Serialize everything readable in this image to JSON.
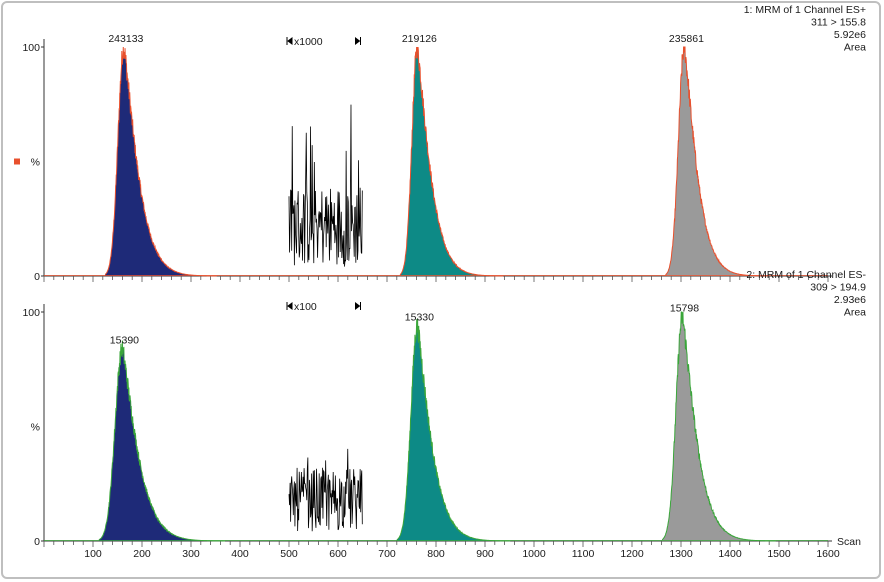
{
  "chart_data": {
    "type": "area",
    "x_label": "Scan",
    "x_range": [
      0,
      1600
    ],
    "x_ticks": [
      100,
      200,
      300,
      400,
      500,
      600,
      700,
      800,
      900,
      1000,
      1100,
      1200,
      1300,
      1400,
      1500,
      1600
    ],
    "y_unit_label": "%",
    "colors": {
      "peak1": "#1e2a78",
      "peak2": "#0d8a86",
      "peak3": "#9a9a9a",
      "trace1": "#e8502d",
      "trace2": "#3aa63a",
      "noise": "#000000"
    },
    "panels": [
      {
        "id": 1,
        "header": [
          "1: MRM of 1 Channel ES+",
          "311 > 155.8",
          "5.92e6",
          "Area"
        ],
        "header_color": "#e8502d",
        "y_ticks": [
          "0",
          "100"
        ],
        "y_mid_label": "%",
        "marker_color": "#e8502d",
        "magnify_label": "x1000",
        "magnify_range": [
          500,
          650
        ],
        "peaks": [
          {
            "label": "243133",
            "apex": 163,
            "height": 100,
            "rise": 12,
            "tail": 38,
            "fill": "peak1"
          },
          {
            "label": "219126",
            "apex": 762,
            "height": 100,
            "rise": 11,
            "tail": 35,
            "fill": "peak2"
          },
          {
            "label": "235861",
            "apex": 1307,
            "height": 100,
            "rise": 12,
            "tail": 34,
            "fill": "peak3"
          }
        ]
      },
      {
        "id": 2,
        "header": [
          "2: MRM of 1 Channel ES-",
          "309 > 194.9",
          "2.93e6",
          "Area"
        ],
        "header_color": "#3aa63a",
        "y_ticks": [
          "0",
          "100"
        ],
        "y_mid_label": "%",
        "magnify_label": "x100",
        "magnify_range": [
          500,
          650
        ],
        "peaks": [
          {
            "label": "15390",
            "apex": 160,
            "height": 84,
            "rise": 15,
            "tail": 42,
            "fill": "peak1"
          },
          {
            "label": "15330",
            "apex": 762,
            "height": 94,
            "rise": 13,
            "tail": 38,
            "fill": "peak2"
          },
          {
            "label": "15798",
            "apex": 1303,
            "height": 98,
            "rise": 13,
            "tail": 38,
            "fill": "peak3"
          }
        ]
      }
    ]
  }
}
